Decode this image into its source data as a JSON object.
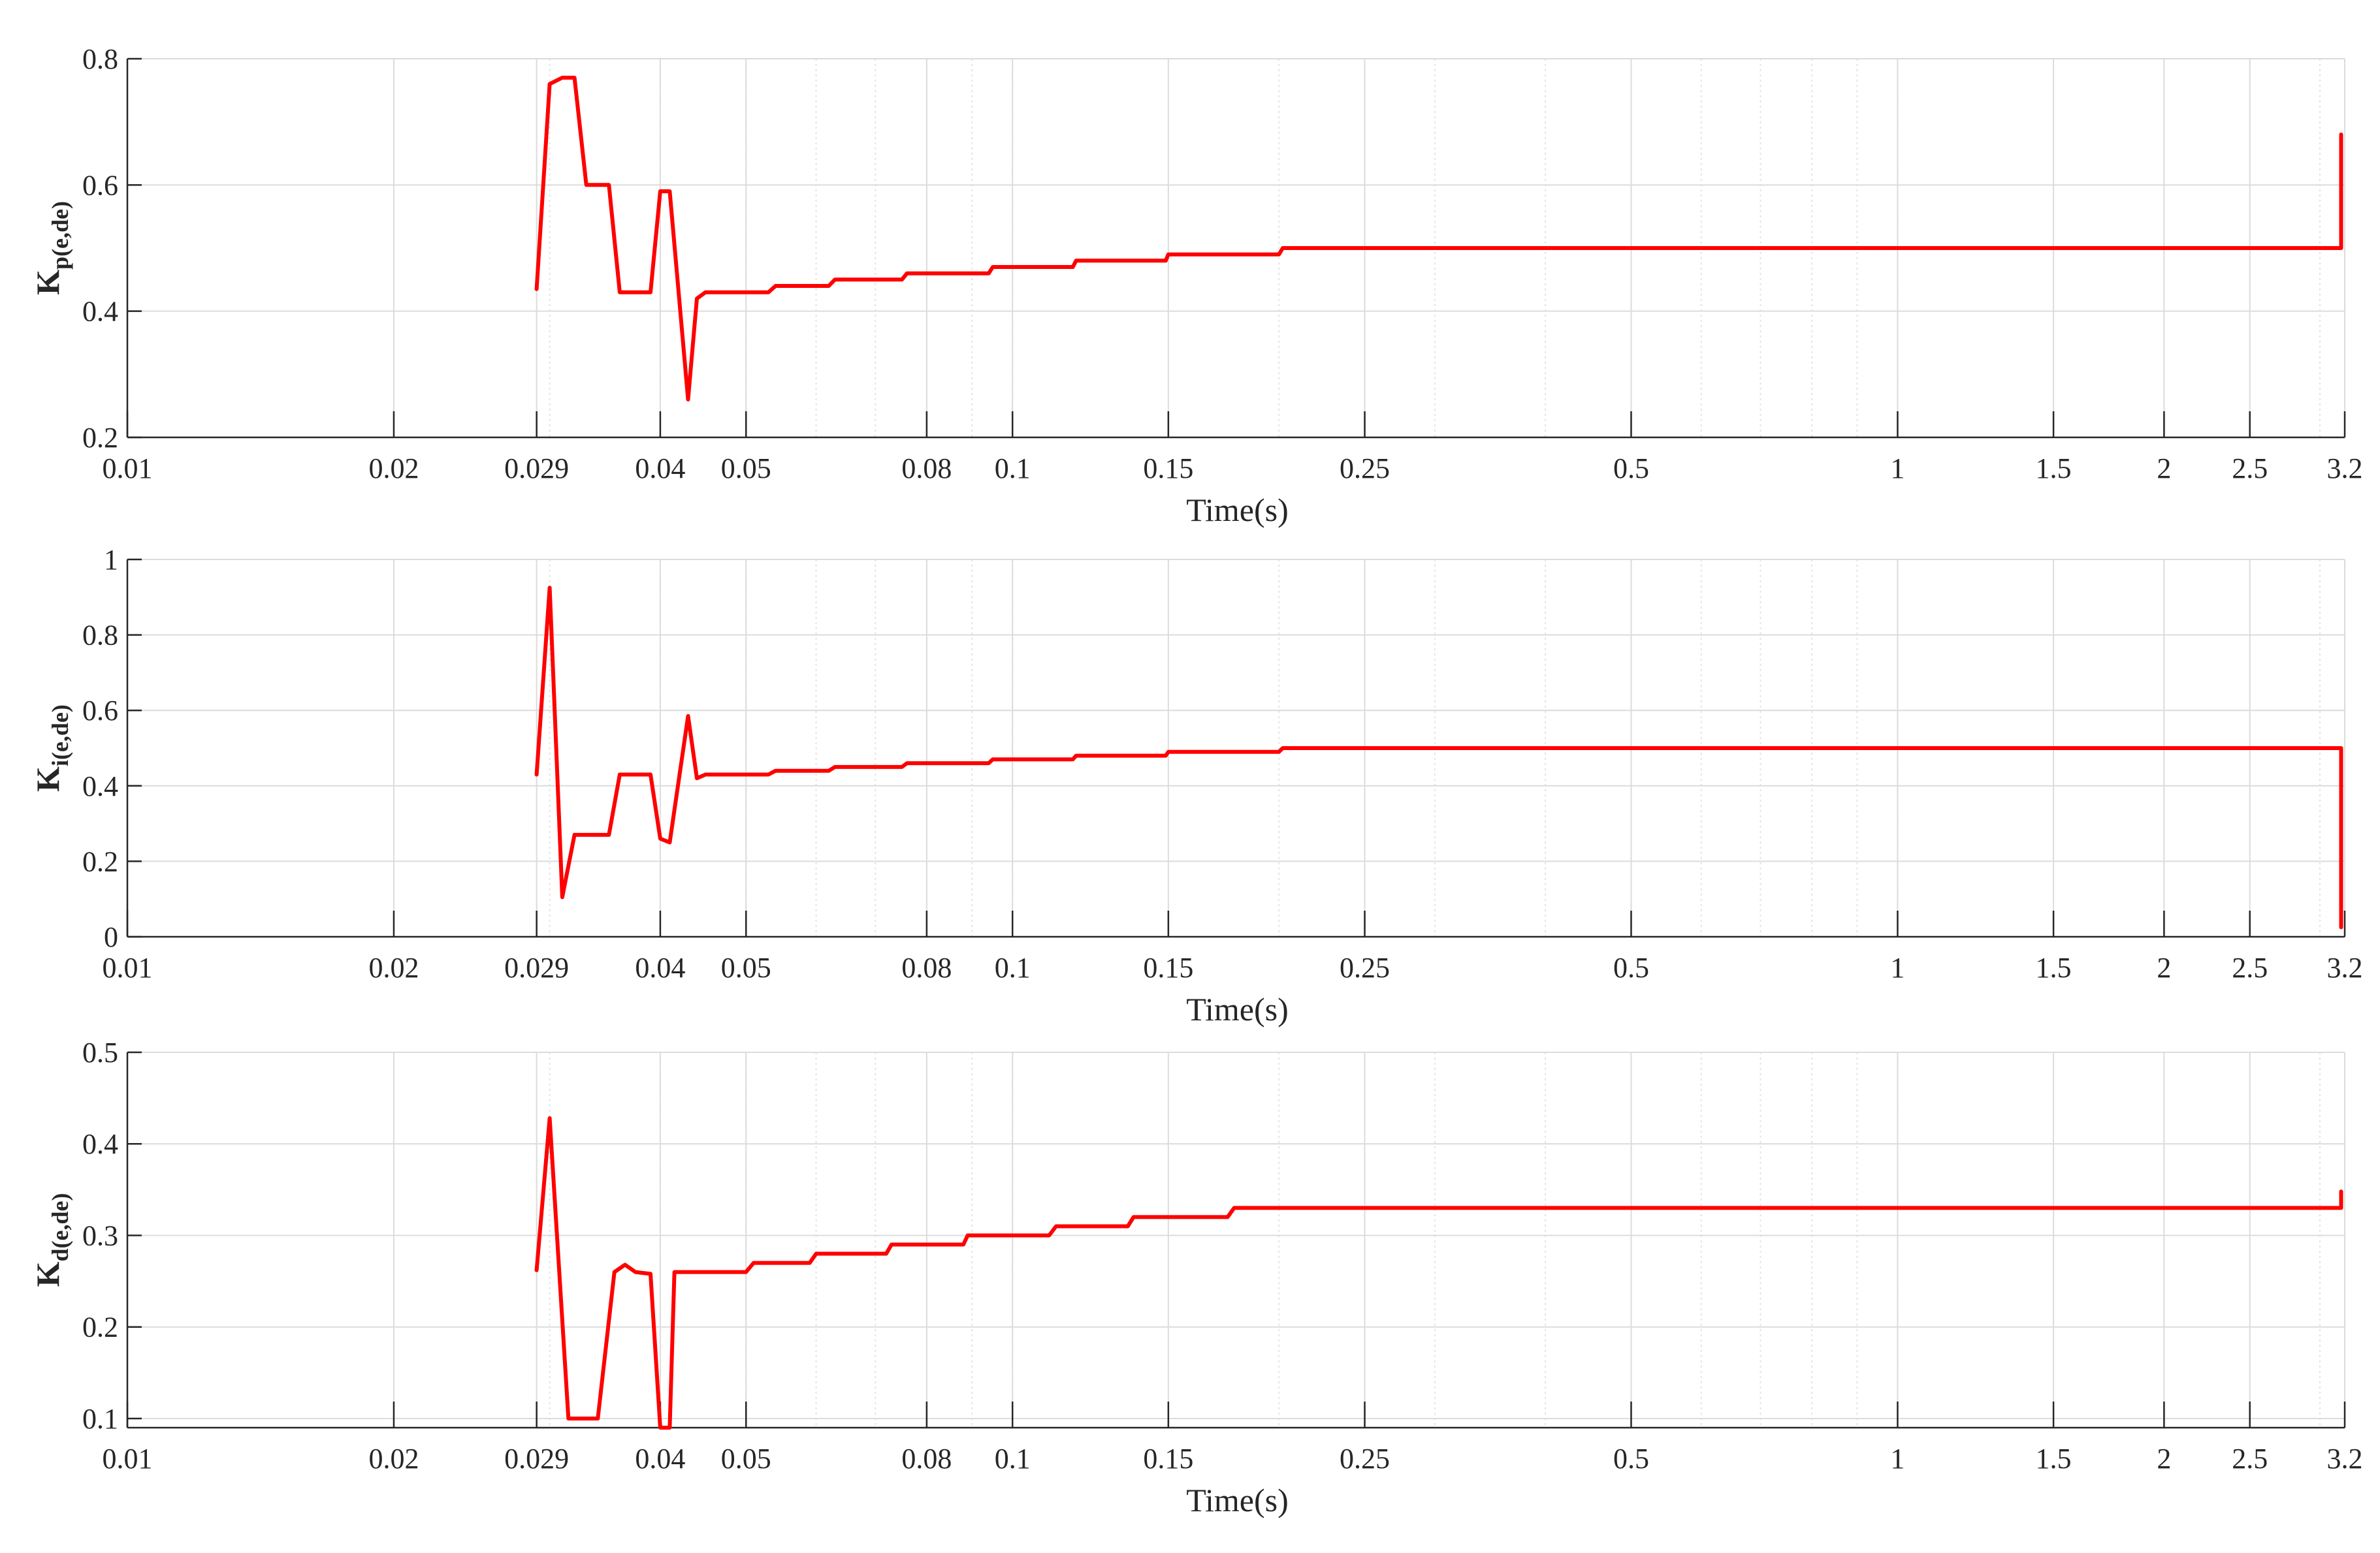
{
  "chart_data": [
    {
      "type": "line",
      "ylabel": {
        "main": "K",
        "sub": "p(e,de)"
      },
      "xlabel": "Time(s)",
      "xscale": "log",
      "xlim": [
        0.01,
        3.2
      ],
      "ylim": [
        0.2,
        0.8
      ],
      "yticks": [
        "0.2",
        "0.4",
        "0.6",
        "0.8"
      ],
      "xticks": [
        "0.01",
        "0.02",
        "0.029",
        "0.04",
        "0.05",
        "0.08",
        "0.1",
        "0.15",
        "0.25",
        "0.5",
        "1",
        "1.5",
        "2",
        "2.5",
        "3.2"
      ],
      "grid": true,
      "series": [
        {
          "color": "#ff0000",
          "points": [
            [
              0.029,
              0.435
            ],
            [
              0.03,
              0.76
            ],
            [
              0.0305,
              0.765
            ],
            [
              0.031,
              0.77
            ],
            [
              0.032,
              0.77
            ],
            [
              0.033,
              0.6
            ],
            [
              0.035,
              0.6
            ],
            [
              0.036,
              0.43
            ],
            [
              0.039,
              0.43
            ],
            [
              0.04,
              0.59
            ],
            [
              0.041,
              0.59
            ],
            [
              0.043,
              0.26
            ],
            [
              0.044,
              0.42
            ],
            [
              0.045,
              0.43
            ],
            [
              0.053,
              0.43
            ],
            [
              0.054,
              0.44
            ],
            [
              0.062,
              0.44
            ],
            [
              0.063,
              0.45
            ],
            [
              0.075,
              0.45
            ],
            [
              0.076,
              0.46
            ],
            [
              0.094,
              0.46
            ],
            [
              0.095,
              0.47
            ],
            [
              0.117,
              0.47
            ],
            [
              0.118,
              0.48
            ],
            [
              0.149,
              0.48
            ],
            [
              0.15,
              0.49
            ],
            [
              0.2,
              0.49
            ],
            [
              0.202,
              0.5
            ],
            [
              3.17,
              0.5
            ],
            [
              3.17,
              0.68
            ]
          ]
        }
      ]
    },
    {
      "type": "line",
      "ylabel": {
        "main": "K",
        "sub": "i(e,de)"
      },
      "xlabel": "Time(s)",
      "xscale": "log",
      "xlim": [
        0.01,
        3.2
      ],
      "ylim": [
        0,
        1
      ],
      "yticks": [
        "0",
        "0.2",
        "0.4",
        "0.6",
        "0.8",
        "1"
      ],
      "xticks": [
        "0.01",
        "0.02",
        "0.029",
        "0.04",
        "0.05",
        "0.08",
        "0.1",
        "0.15",
        "0.25",
        "0.5",
        "1",
        "1.5",
        "2",
        "2.5",
        "3.2"
      ],
      "grid": true,
      "series": [
        {
          "color": "#ff0000",
          "points": [
            [
              0.029,
              0.43
            ],
            [
              0.03,
              0.925
            ],
            [
              0.031,
              0.105
            ],
            [
              0.032,
              0.27
            ],
            [
              0.035,
              0.27
            ],
            [
              0.036,
              0.43
            ],
            [
              0.039,
              0.43
            ],
            [
              0.04,
              0.26
            ],
            [
              0.041,
              0.25
            ],
            [
              0.043,
              0.585
            ],
            [
              0.044,
              0.42
            ],
            [
              0.045,
              0.43
            ],
            [
              0.053,
              0.43
            ],
            [
              0.054,
              0.44
            ],
            [
              0.062,
              0.44
            ],
            [
              0.063,
              0.45
            ],
            [
              0.075,
              0.45
            ],
            [
              0.076,
              0.46
            ],
            [
              0.094,
              0.46
            ],
            [
              0.095,
              0.47
            ],
            [
              0.117,
              0.47
            ],
            [
              0.118,
              0.48
            ],
            [
              0.149,
              0.48
            ],
            [
              0.15,
              0.49
            ],
            [
              0.2,
              0.49
            ],
            [
              0.202,
              0.5
            ],
            [
              3.17,
              0.5
            ],
            [
              3.17,
              0.025
            ]
          ]
        }
      ]
    },
    {
      "type": "line",
      "ylabel": {
        "main": "K",
        "sub": "d(e,de)"
      },
      "xlabel": "Time(s)",
      "xscale": "log",
      "xlim": [
        0.01,
        3.2
      ],
      "ylim": [
        0.09,
        0.5
      ],
      "yticks": [
        "0.1",
        "0.2",
        "0.3",
        "0.4",
        "0.5"
      ],
      "xticks": [
        "0.01",
        "0.02",
        "0.029",
        "0.04",
        "0.05",
        "0.08",
        "0.1",
        "0.15",
        "0.25",
        "0.5",
        "1",
        "1.5",
        "2",
        "2.5",
        "3.2"
      ],
      "grid": true,
      "series": [
        {
          "color": "#ff0000",
          "points": [
            [
              0.029,
              0.262
            ],
            [
              0.03,
              0.428
            ],
            [
              0.0315,
              0.1
            ],
            [
              0.034,
              0.1
            ],
            [
              0.0355,
              0.26
            ],
            [
              0.0365,
              0.268
            ],
            [
              0.0375,
              0.26
            ],
            [
              0.039,
              0.258
            ],
            [
              0.04,
              0.09
            ],
            [
              0.041,
              0.09
            ],
            [
              0.0415,
              0.26
            ],
            [
              0.05,
              0.26
            ],
            [
              0.051,
              0.27
            ],
            [
              0.059,
              0.27
            ],
            [
              0.06,
              0.28
            ],
            [
              0.072,
              0.28
            ],
            [
              0.073,
              0.29
            ],
            [
              0.088,
              0.29
            ],
            [
              0.089,
              0.3
            ],
            [
              0.11,
              0.3
            ],
            [
              0.112,
              0.31
            ],
            [
              0.135,
              0.31
            ],
            [
              0.137,
              0.32
            ],
            [
              0.175,
              0.32
            ],
            [
              0.178,
              0.33
            ],
            [
              3.17,
              0.33
            ],
            [
              3.17,
              0.348
            ]
          ]
        }
      ]
    }
  ]
}
